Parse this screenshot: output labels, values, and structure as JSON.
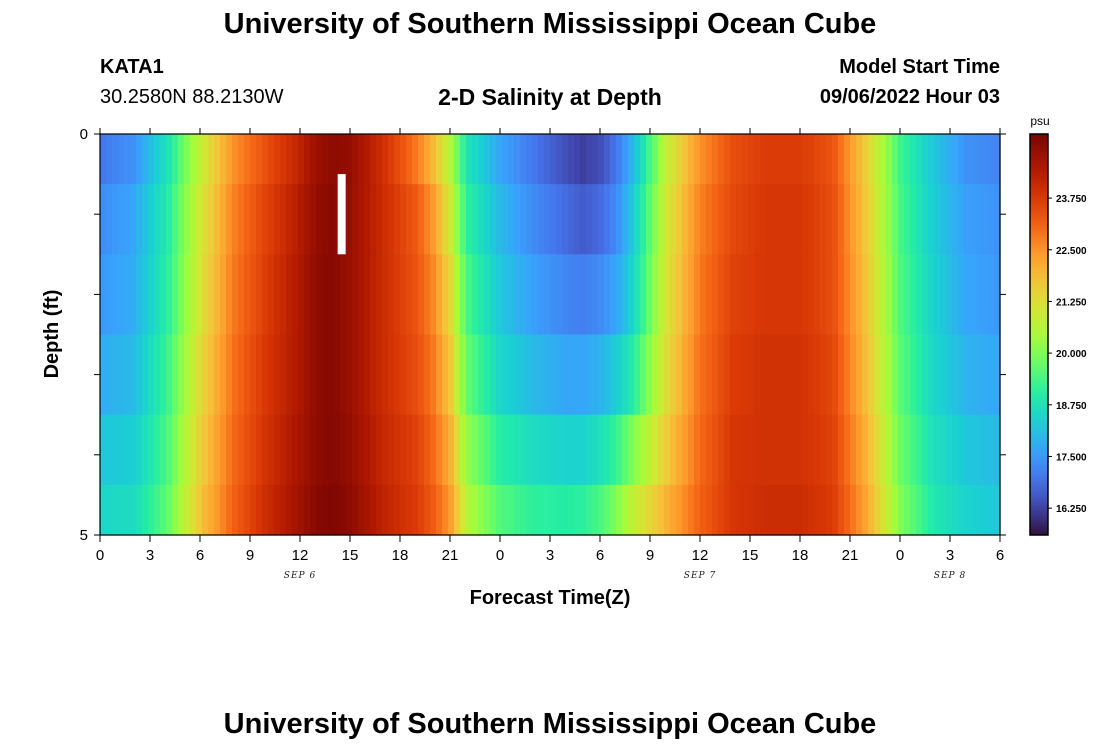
{
  "header": {
    "title": "University of Southern Mississippi Ocean Cube",
    "station": "KATA1",
    "coords": "30.2580N  88.2130W",
    "subtitle": "2-D Salinity at Depth",
    "model_start_label": "Model Start Time",
    "model_start_value": "09/06/2022 Hour 03",
    "footer_title": "University of Southern Mississippi Ocean Cube"
  },
  "chart_data": {
    "type": "heatmap",
    "title": "2-D Salinity at Depth",
    "xlabel": "Forecast Time(Z)",
    "ylabel": "Depth (ft)",
    "x_start_hour": 0,
    "x_end_hour": 54,
    "x_tick_labels": [
      "0",
      "3",
      "6",
      "9",
      "12",
      "15",
      "18",
      "21",
      "0",
      "3",
      "6",
      "9",
      "12",
      "15",
      "18",
      "21",
      "0",
      "3",
      "6"
    ],
    "day_labels": [
      {
        "label": "SEP 6",
        "hour": 12
      },
      {
        "label": "SEP 7",
        "hour": 36
      },
      {
        "label": "SEP 8",
        "hour": 51
      }
    ],
    "y_tick_labels": [
      "0",
      "5"
    ],
    "ylim": [
      0,
      5
    ],
    "depth_levels": [
      0.25,
      1.0,
      2.0,
      3.0,
      4.0,
      4.75
    ],
    "profile_hours": [
      0,
      2,
      4,
      6,
      8,
      10,
      12,
      13,
      14,
      15,
      17,
      19,
      20,
      21,
      22,
      24,
      26,
      28,
      29,
      30,
      31,
      32,
      34,
      36,
      38,
      40,
      42,
      44,
      46,
      48,
      50,
      52,
      54
    ],
    "salinity_psu": [
      [
        17.0,
        17.4,
        18.7,
        20.8,
        22.5,
        23.4,
        24.2,
        24.8,
        25.0,
        24.9,
        23.9,
        22.8,
        21.9,
        20.6,
        18.8,
        17.7,
        17.0,
        16.4,
        16.2,
        16.4,
        17.0,
        18.0,
        20.8,
        22.5,
        23.4,
        23.7,
        23.7,
        23.3,
        21.5,
        19.3,
        18.2,
        17.4,
        17.2
      ],
      [
        17.3,
        17.7,
        18.9,
        21.0,
        22.7,
        23.6,
        24.4,
        24.9,
        25.1,
        24.8,
        24.0,
        23.2,
        22.4,
        21.0,
        19.1,
        18.0,
        17.3,
        16.8,
        16.6,
        16.8,
        17.3,
        18.3,
        21.0,
        22.7,
        23.5,
        23.8,
        23.8,
        23.4,
        21.6,
        19.4,
        18.3,
        17.6,
        17.4
      ],
      [
        17.5,
        17.8,
        19.0,
        21.1,
        22.8,
        23.7,
        24.5,
        25.0,
        25.1,
        24.8,
        24.0,
        23.3,
        22.6,
        21.4,
        19.4,
        18.2,
        17.6,
        17.2,
        17.1,
        17.3,
        17.7,
        18.5,
        21.1,
        22.8,
        23.6,
        23.8,
        23.8,
        23.4,
        21.7,
        19.5,
        18.4,
        17.7,
        17.5
      ],
      [
        17.8,
        18.0,
        19.2,
        21.3,
        22.9,
        23.8,
        24.5,
        25.0,
        25.1,
        24.8,
        24.0,
        23.4,
        22.8,
        21.7,
        19.7,
        18.5,
        18.0,
        17.7,
        17.7,
        17.9,
        18.3,
        19.0,
        21.3,
        22.9,
        23.7,
        23.9,
        23.9,
        23.5,
        21.8,
        19.6,
        18.5,
        17.9,
        17.7
      ],
      [
        18.2,
        18.3,
        19.4,
        21.5,
        23.0,
        23.9,
        24.6,
        25.0,
        25.1,
        24.9,
        24.1,
        23.6,
        23.0,
        22.1,
        20.2,
        19.0,
        18.6,
        18.4,
        18.4,
        18.7,
        19.2,
        20.0,
        21.6,
        23.0,
        23.8,
        23.9,
        23.9,
        23.6,
        22.0,
        19.8,
        18.7,
        18.2,
        18.0
      ],
      [
        18.5,
        18.6,
        19.6,
        21.7,
        23.1,
        24.0,
        24.7,
        25.1,
        25.2,
        25.0,
        24.2,
        23.7,
        23.2,
        22.4,
        20.6,
        19.5,
        19.1,
        19.0,
        19.1,
        19.4,
        20.0,
        20.8,
        22.0,
        23.1,
        23.8,
        24.0,
        24.0,
        23.7,
        22.2,
        20.0,
        18.9,
        18.4,
        18.2
      ]
    ],
    "colorbar": {
      "unit": "psu",
      "min": 15.6,
      "max": 25.3,
      "tick_labels": [
        "16.250",
        "17.500",
        "18.750",
        "20.000",
        "21.250",
        "22.500",
        "23.750"
      ],
      "tick_values": [
        16.25,
        17.5,
        18.75,
        20.0,
        21.25,
        22.5,
        23.75
      ]
    },
    "marker": {
      "hour": 14.5,
      "depth_from": 0.5,
      "depth_to": 1.5,
      "color": "#ffffff"
    }
  }
}
